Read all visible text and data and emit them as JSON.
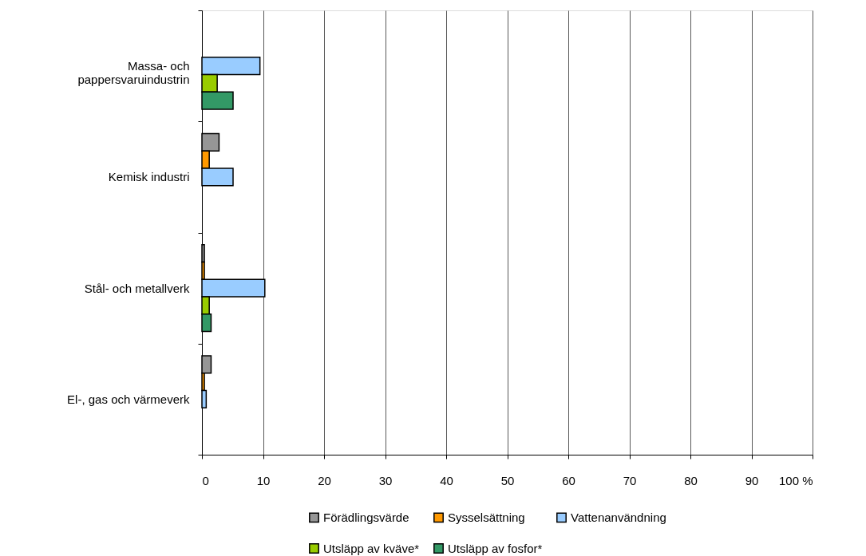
{
  "chart_data": {
    "type": "bar",
    "orientation": "horizontal",
    "categories": [
      "Massa- och pappersvaruindustrin",
      "Kemisk industri",
      "Stål- och metallverk",
      "El-, gas och värmeverk"
    ],
    "series": [
      {
        "name": "Förädlingsvärde",
        "color": "#969696",
        "values": [
          null,
          2.8,
          0.4,
          1.5
        ]
      },
      {
        "name": "Sysselsättning",
        "color": "#ff9900",
        "values": [
          null,
          1.2,
          0.4,
          0.4
        ]
      },
      {
        "name": "Vattenanvändning",
        "color": "#99ccff",
        "values": [
          9.5,
          5.1,
          10.3,
          0.7
        ]
      },
      {
        "name": "Utsläpp av kväve*",
        "color": "#99cc00",
        "values": [
          2.5,
          null,
          1.2,
          null
        ]
      },
      {
        "name": "Utsläpp av fosfor*",
        "color": "#339966",
        "values": [
          5.1,
          null,
          1.5,
          null
        ]
      }
    ],
    "xlim": [
      0,
      100
    ],
    "xticks": [
      0,
      10,
      20,
      30,
      40,
      50,
      60,
      70,
      80,
      90,
      {
        "value": 100,
        "label": "100 %"
      }
    ],
    "grid": "x",
    "legend": "bottom"
  }
}
